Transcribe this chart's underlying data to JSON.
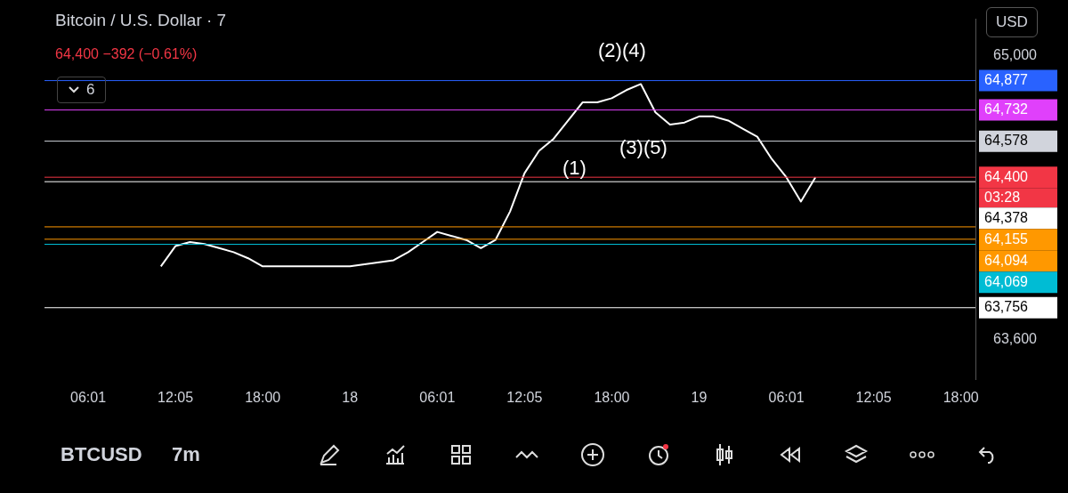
{
  "chart_data": {
    "type": "line",
    "title": "Bitcoin / U.S. Dollar · 7",
    "subtitle": "64,400 −392 (−0.61%)",
    "categories": [
      null,
      null,
      null,
      "06:01",
      null,
      null,
      null,
      null,
      null,
      "12:05",
      null,
      null,
      null,
      null,
      null,
      "18:00",
      null,
      null,
      null,
      null,
      null,
      "18",
      null,
      null,
      null,
      null,
      null,
      "06:01",
      null,
      null,
      null,
      null,
      null,
      "12:05",
      null,
      null,
      null,
      null,
      null,
      "18:00",
      null,
      null,
      null,
      null,
      null,
      "19",
      null,
      null,
      null,
      null,
      null,
      "06:01",
      null,
      null,
      null,
      null,
      null,
      "12:05",
      null,
      null,
      null,
      null,
      null,
      "18:00",
      null
    ],
    "series": [
      {
        "color": "#ffffff",
        "values": [
          null,
          null,
          null,
          null,
          null,
          null,
          null,
          null,
          63960,
          64060,
          64080,
          64070,
          64050,
          64030,
          64000,
          63960,
          63960,
          63960,
          63960,
          63960,
          63960,
          63960,
          63970,
          63980,
          63990,
          64030,
          64080,
          64130,
          64110,
          64090,
          64050,
          64090,
          64230,
          64420,
          64530,
          64590,
          64680,
          64770,
          64770,
          64790,
          64830,
          64860,
          64720,
          64660,
          64670,
          64700,
          64700,
          64680,
          64640,
          64600,
          64490,
          64400,
          64280,
          64400,
          null,
          null,
          null,
          null,
          null,
          null,
          null,
          null,
          null,
          null,
          null
        ]
      }
    ],
    "ylim": [
      63400,
      65180
    ],
    "yticks": [
      {
        "value": 63600,
        "label": "63,600"
      },
      {
        "value": 65000,
        "label": "65,000"
      }
    ],
    "ref_lines": [
      {
        "axis": "y",
        "value": 64877,
        "label": "64,877",
        "color": "#2962ff"
      },
      {
        "axis": "y",
        "value": 64732,
        "label": "64,732",
        "color": "#e040fb"
      },
      {
        "axis": "y",
        "value": 64578,
        "label": "64,578",
        "color": "#d1d4dc"
      },
      {
        "axis": "y",
        "value": 64400,
        "label": "64,400",
        "color": "#f23645"
      },
      {
        "axis": "y",
        "value": 64378,
        "label": "64,378",
        "color": "#ffffff"
      },
      {
        "axis": "y",
        "value": 64155,
        "label": "64,155",
        "color": "#ff9800"
      },
      {
        "axis": "y",
        "value": 64094,
        "label": "64,094",
        "color": "#ff9800"
      },
      {
        "axis": "y",
        "value": 64069,
        "label": "64,069",
        "color": "#00bcd4"
      },
      {
        "axis": "y",
        "value": 63756,
        "label": "63,756",
        "color": "#ffffff"
      }
    ],
    "annotations": [
      "(2)(4)",
      "(1)",
      "(3)(5)",
      "03:28",
      "6",
      "USD",
      "BTCUSD",
      "7m"
    ],
    "grid": false,
    "legend": false,
    "line_style": "solid",
    "marker": "none"
  }
}
